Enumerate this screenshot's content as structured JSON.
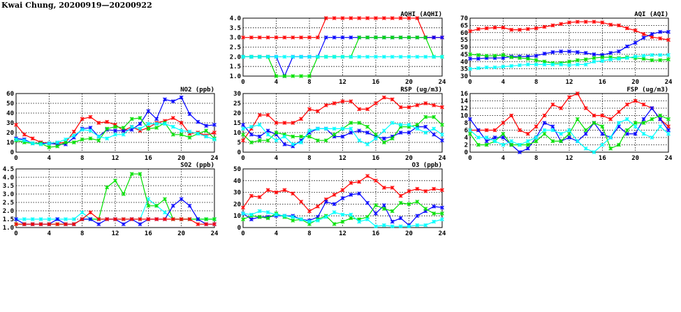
{
  "title": "Kwai Chung, 20200919—20200922",
  "series_colors": [
    "#ff0000",
    "#0000ff",
    "#00e000",
    "#00ffff"
  ],
  "chart_data": [
    {
      "id": "aqhi",
      "type": "line",
      "title": "AQHI (AQHI)",
      "xlim": [
        0,
        24
      ],
      "xticks": [
        0,
        4,
        8,
        12,
        16,
        20,
        24
      ],
      "ylim": [
        1,
        4
      ],
      "yticks": [
        "1.0",
        "1.5",
        "2.0",
        "2.5",
        "3.0",
        "3.5",
        "4.0"
      ],
      "grid": true,
      "x": [
        0,
        1,
        2,
        3,
        4,
        5,
        6,
        7,
        8,
        9,
        10,
        11,
        12,
        13,
        14,
        15,
        16,
        17,
        18,
        19,
        20,
        21,
        22,
        23,
        24
      ],
      "series": [
        {
          "name": "red",
          "values": [
            3,
            3,
            3,
            3,
            3,
            3,
            3,
            3,
            3,
            3,
            4,
            4,
            4,
            4,
            4,
            4,
            4,
            4,
            4,
            4,
            4,
            4,
            3,
            3,
            3
          ]
        },
        {
          "name": "blue",
          "values": [
            2,
            2,
            2,
            2,
            2,
            1,
            2,
            2,
            2,
            2,
            3,
            3,
            3,
            3,
            3,
            3,
            3,
            3,
            3,
            3,
            3,
            3,
            3,
            3,
            3
          ]
        },
        {
          "name": "green",
          "values": [
            2,
            2,
            2,
            2,
            1,
            1,
            1,
            1,
            1,
            2,
            2,
            2,
            2,
            2,
            3,
            3,
            3,
            3,
            3,
            3,
            3,
            3,
            3,
            2,
            2
          ]
        },
        {
          "name": "cyan",
          "values": [
            2,
            2,
            2,
            2,
            2,
            2,
            2,
            2,
            2,
            2,
            2,
            2,
            2,
            2,
            2,
            2,
            2,
            2,
            2,
            2,
            2,
            2,
            2,
            2,
            2
          ]
        }
      ]
    },
    {
      "id": "aqi",
      "type": "line",
      "title": "AQI (AQI)",
      "xlim": [
        0,
        24
      ],
      "xticks": [
        0,
        4,
        8,
        12,
        16,
        20,
        24
      ],
      "ylim": [
        30,
        70
      ],
      "yticks": [
        "30",
        "35",
        "40",
        "45",
        "50",
        "55",
        "60",
        "65",
        "70"
      ],
      "grid": true,
      "x": [
        0,
        1,
        2,
        3,
        4,
        5,
        6,
        7,
        8,
        9,
        10,
        11,
        12,
        13,
        14,
        15,
        16,
        17,
        18,
        19,
        20,
        21,
        22,
        23,
        24
      ],
      "series": [
        {
          "name": "red",
          "values": [
            61,
            62.5,
            63,
            63.5,
            63.5,
            62,
            62,
            62.5,
            63,
            64,
            65,
            66,
            67,
            67.5,
            67.5,
            67.5,
            67,
            65.5,
            65,
            63,
            61.5,
            59,
            57,
            56,
            55
          ]
        },
        {
          "name": "blue",
          "values": [
            42,
            42,
            42.5,
            42.5,
            42.5,
            43.5,
            43.5,
            43.5,
            44,
            45.5,
            46.5,
            47,
            47,
            46.5,
            46,
            45,
            44.5,
            46,
            47,
            50.5,
            53,
            56.5,
            59,
            60.5,
            60.5
          ]
        },
        {
          "name": "green",
          "values": [
            45,
            44.5,
            44,
            44,
            44.5,
            43,
            42.5,
            42,
            41,
            40,
            39,
            39,
            40,
            41,
            41.5,
            42.5,
            43,
            43,
            42.5,
            43,
            42.5,
            42,
            41,
            41,
            41.5
          ]
        },
        {
          "name": "cyan",
          "values": [
            35,
            35.5,
            36,
            36,
            36.5,
            37,
            37.5,
            38,
            38,
            38,
            38,
            38,
            37.5,
            38,
            38,
            40,
            40.5,
            41.5,
            42,
            42.5,
            43.5,
            44,
            44.5,
            44.5,
            44.5
          ]
        }
      ]
    },
    {
      "id": "no2",
      "type": "line",
      "title": "NO2 (ppb)",
      "xlim": [
        0,
        24
      ],
      "xticks": [
        0,
        4,
        8,
        12,
        16,
        20,
        24
      ],
      "ylim": [
        0,
        60
      ],
      "yticks": [
        "0",
        "10",
        "20",
        "30",
        "40",
        "50",
        "60"
      ],
      "grid": true,
      "x": [
        0,
        1,
        2,
        3,
        4,
        5,
        6,
        7,
        8,
        9,
        10,
        11,
        12,
        13,
        14,
        15,
        16,
        17,
        18,
        19,
        20,
        21,
        22,
        23,
        24
      ],
      "series": [
        {
          "name": "red",
          "values": [
            28,
            18,
            14,
            10,
            9,
            9,
            10,
            21,
            34,
            36,
            30,
            31,
            28,
            22,
            26,
            22,
            25,
            30,
            32,
            35,
            30,
            19,
            20,
            17,
            20
          ]
        },
        {
          "name": "blue",
          "values": [
            14,
            13,
            9,
            9,
            9,
            8,
            8,
            15,
            24,
            25,
            16,
            23,
            22,
            22,
            23,
            29,
            42,
            34,
            54,
            52,
            56,
            39,
            31,
            27,
            28
          ]
        },
        {
          "name": "green",
          "values": [
            12,
            10,
            9,
            9,
            5,
            6,
            10,
            10,
            13,
            14,
            12,
            24,
            26,
            25,
            34,
            35,
            24,
            25,
            30,
            18,
            18,
            15,
            19,
            22,
            14
          ]
        },
        {
          "name": "cyan",
          "values": [
            13,
            12,
            9,
            8,
            9,
            10,
            13,
            17,
            23,
            22,
            16,
            14,
            18,
            18,
            26,
            24,
            29,
            29,
            29,
            26,
            22,
            21,
            19,
            16,
            13
          ]
        }
      ]
    },
    {
      "id": "rsp",
      "type": "line",
      "title": "RSP (ug/m3)",
      "xlim": [
        0,
        24
      ],
      "xticks": [
        0,
        4,
        8,
        12,
        16,
        20,
        24
      ],
      "ylim": [
        0,
        30
      ],
      "yticks": [
        "0",
        "5",
        "10",
        "15",
        "20",
        "25",
        "30"
      ],
      "grid": true,
      "x": [
        0,
        1,
        2,
        3,
        4,
        5,
        6,
        7,
        8,
        9,
        10,
        11,
        12,
        13,
        14,
        15,
        16,
        17,
        18,
        19,
        20,
        21,
        22,
        23,
        24
      ],
      "series": [
        {
          "name": "red",
          "values": [
            6,
            12,
            19,
            19,
            15,
            15,
            15,
            17,
            22,
            21,
            24,
            25,
            26,
            26,
            22,
            22,
            25,
            28,
            27,
            23,
            23,
            24,
            25,
            24,
            23
          ]
        },
        {
          "name": "blue",
          "values": [
            14,
            9,
            8,
            11,
            9,
            4,
            3,
            6,
            10,
            12,
            12,
            8,
            8,
            10,
            11,
            10,
            8,
            7,
            8,
            10,
            10,
            13,
            13,
            9,
            6
          ]
        },
        {
          "name": "green",
          "values": [
            9,
            5,
            6,
            6,
            10,
            9,
            8,
            8,
            8,
            6,
            6,
            9,
            12,
            15,
            15,
            13,
            9,
            5,
            7,
            13,
            13,
            14,
            18,
            18,
            14
          ]
        },
        {
          "name": "cyan",
          "values": [
            12,
            13,
            14,
            9,
            6,
            8,
            4,
            5,
            11,
            12,
            12,
            12,
            12,
            12,
            6,
            4,
            7,
            11,
            15,
            14,
            14,
            12,
            10,
            12,
            9
          ]
        }
      ]
    },
    {
      "id": "fsp",
      "type": "line",
      "title": "FSP (ug/m3)",
      "xlim": [
        0,
        24
      ],
      "xticks": [
        0,
        4,
        8,
        12,
        16,
        20,
        24
      ],
      "ylim": [
        0,
        16
      ],
      "yticks": [
        "0",
        "2",
        "4",
        "6",
        "8",
        "10",
        "12",
        "14",
        "16"
      ],
      "grid": true,
      "x": [
        0,
        1,
        2,
        3,
        4,
        5,
        6,
        7,
        8,
        9,
        10,
        11,
        12,
        13,
        14,
        15,
        16,
        17,
        18,
        19,
        20,
        21,
        22,
        23,
        24
      ],
      "series": [
        {
          "name": "red",
          "values": [
            6,
            6,
            6,
            6,
            8,
            10,
            6,
            5,
            7,
            10,
            13,
            12,
            15,
            16,
            12,
            10,
            10,
            9,
            11,
            13,
            14,
            13,
            12,
            9,
            7
          ]
        },
        {
          "name": "blue",
          "values": [
            9,
            6,
            3,
            4,
            4,
            2,
            0,
            1,
            4,
            8,
            7,
            3,
            4,
            3,
            5,
            8,
            5,
            4,
            7,
            5,
            5,
            9,
            12,
            9,
            6
          ]
        },
        {
          "name": "green",
          "values": [
            5,
            2,
            2,
            3,
            5,
            2,
            2,
            2,
            3,
            5,
            3,
            3,
            5,
            9,
            6,
            8,
            7,
            1,
            2,
            6,
            8,
            8,
            9,
            10,
            9
          ]
        },
        {
          "name": "cyan",
          "values": [
            6,
            4,
            4,
            3,
            2,
            3,
            2,
            3,
            4,
            6,
            6,
            5,
            6,
            3,
            1,
            0,
            2,
            4,
            8,
            9,
            7,
            5,
            4,
            7,
            5
          ]
        }
      ]
    },
    {
      "id": "so2",
      "type": "line",
      "title": "SO2 (ppb)",
      "xlim": [
        0,
        24
      ],
      "xticks": [
        0,
        4,
        8,
        12,
        16,
        20,
        24
      ],
      "ylim": [
        1,
        4.5
      ],
      "yticks": [
        "1.0",
        "1.5",
        "2.0",
        "2.5",
        "3.0",
        "3.5",
        "4.0",
        "4.5"
      ],
      "grid": true,
      "x": [
        0,
        1,
        2,
        3,
        4,
        5,
        6,
        7,
        8,
        9,
        10,
        11,
        12,
        13,
        14,
        15,
        16,
        17,
        18,
        19,
        20,
        21,
        22,
        23,
        24
      ],
      "series": [
        {
          "name": "cyan",
          "values": [
            1.5,
            1.5,
            1.5,
            1.5,
            1.5,
            1.5,
            1.5,
            1.5,
            1.9,
            1.5,
            1.5,
            1.5,
            1.5,
            1.5,
            1.5,
            1.5,
            2.7,
            2.3,
            1.9,
            1.5,
            1.5,
            1.5,
            1.5,
            1.5,
            1.5
          ]
        },
        {
          "name": "green",
          "values": [
            1.2,
            1.2,
            1.2,
            1.2,
            1.2,
            1.2,
            1.2,
            1.2,
            1.5,
            1.5,
            1.5,
            3.4,
            3.8,
            3.0,
            4.2,
            4.2,
            2.3,
            2.3,
            2.7,
            1.5,
            1.5,
            1.5,
            1.5,
            1.5,
            1.5
          ]
        },
        {
          "name": "blue",
          "values": [
            1.5,
            1.2,
            1.2,
            1.2,
            1.2,
            1.5,
            1.2,
            1.2,
            1.5,
            1.5,
            1.2,
            1.5,
            1.5,
            1.2,
            1.5,
            1.2,
            1.5,
            1.5,
            1.5,
            2.3,
            2.7,
            2.3,
            1.5,
            1.2,
            1.2
          ]
        },
        {
          "name": "red",
          "values": [
            1.2,
            1.2,
            1.2,
            1.2,
            1.2,
            1.2,
            1.2,
            1.2,
            1.5,
            1.9,
            1.5,
            1.5,
            1.5,
            1.5,
            1.5,
            1.5,
            1.5,
            1.5,
            1.5,
            1.5,
            1.5,
            1.5,
            1.2,
            1.2,
            1.2
          ]
        }
      ]
    },
    {
      "id": "o3",
      "type": "line",
      "title": "O3 (ppb)",
      "xlim": [
        0,
        24
      ],
      "xticks": [
        0,
        4,
        8,
        12,
        16,
        20,
        24
      ],
      "ylim": [
        0,
        50
      ],
      "yticks": [
        "0",
        "10",
        "20",
        "30",
        "40",
        "50"
      ],
      "grid": true,
      "x": [
        0,
        1,
        2,
        3,
        4,
        5,
        6,
        7,
        8,
        9,
        10,
        11,
        12,
        13,
        14,
        15,
        16,
        17,
        18,
        19,
        20,
        21,
        22,
        23,
        24
      ],
      "series": [
        {
          "name": "red",
          "values": [
            17,
            27,
            26,
            32,
            30,
            32,
            29,
            22,
            14,
            18,
            24,
            28,
            32,
            38,
            39,
            44,
            40,
            34,
            34,
            27,
            31,
            33,
            31,
            33,
            32
          ]
        },
        {
          "name": "blue",
          "values": [
            12,
            7,
            9,
            9,
            10,
            10,
            10,
            7,
            6,
            9,
            22,
            20,
            25,
            28,
            29,
            21,
            12,
            19,
            5,
            8,
            2,
            10,
            14,
            18,
            17
          ]
        },
        {
          "name": "green",
          "values": [
            7,
            10,
            9,
            8,
            12,
            9,
            6,
            7,
            3,
            7,
            10,
            3,
            5,
            8,
            7,
            9,
            19,
            16,
            14,
            21,
            20,
            22,
            16,
            12,
            12
          ]
        },
        {
          "name": "cyan",
          "values": [
            12,
            11,
            14,
            13,
            11,
            10,
            9,
            7,
            5,
            6,
            9,
            13,
            11,
            11,
            5,
            7,
            1,
            2,
            1,
            1,
            1,
            2,
            2,
            5,
            7
          ]
        }
      ]
    }
  ]
}
